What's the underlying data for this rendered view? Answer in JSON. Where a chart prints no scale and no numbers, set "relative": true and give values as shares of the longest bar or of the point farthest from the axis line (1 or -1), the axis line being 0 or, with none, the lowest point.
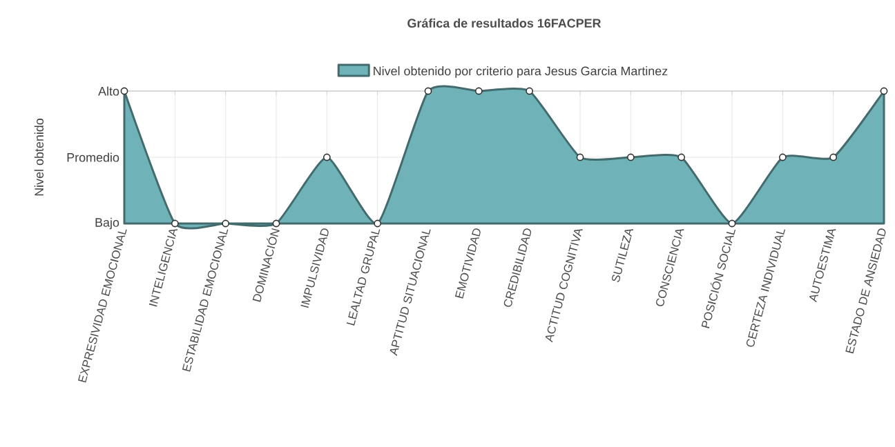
{
  "chart_data": {
    "type": "area",
    "title": "Gráfica de resultados 16FACPER",
    "ylabel": "Nivel obtenido",
    "categories": [
      "EXPRESIVIDAD EMOCIONAL",
      "INTELIGENCIA",
      "ESTABILIDAD EMOCIONAL",
      "DOMINACIÓN",
      "IMPULSIVIDAD",
      "LEALTAD GRUPAL",
      "APTITUD SITUACIONAL",
      "EMOTIVIDAD",
      "CREDIBILIDAD",
      "ACTITUD COGNITIVA",
      "SUTILEZA",
      "CONSCIENCIA",
      "POSICIÓN SOCIAL",
      "CERTEZA INDIVIDUAL",
      "AUTOESTIMA",
      "ESTADO DE ANSIEDAD"
    ],
    "series": [
      {
        "name": "Nivel obtenido por criterio para Jesus Garcia Martinez",
        "color": "#6fb3b8",
        "values": [
          1,
          0,
          0,
          0,
          0.5,
          0,
          1,
          1,
          1,
          0.5,
          0.5,
          0.5,
          0,
          0.5,
          0.5,
          1
        ]
      }
    ],
    "relative": true,
    "annotations": [
      "Bajo",
      "Promedio",
      "Alto"
    ],
    "grid": true,
    "legend": "top",
    "marker": "circle",
    "line_style": "solid"
  }
}
